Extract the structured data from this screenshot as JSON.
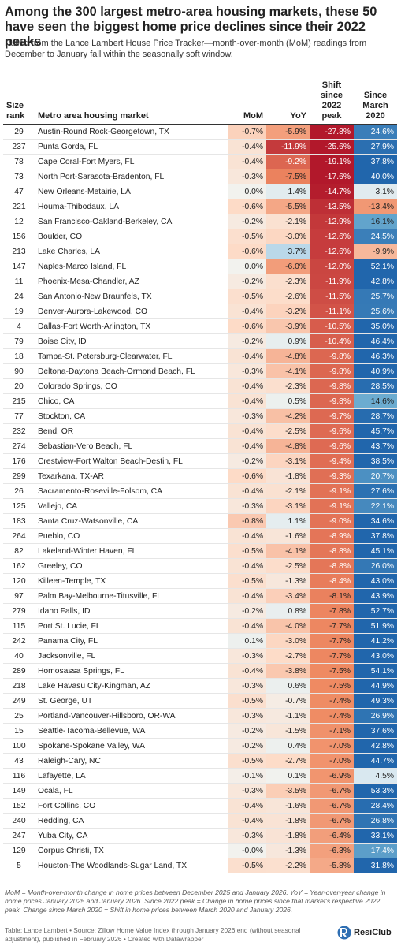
{
  "header": {
    "title": "Among the 300 largest metro-area housing markets, these 50 have seen the biggest home price declines since their 2022 peaks",
    "subtitle": "Pulled from the Lance Lambert House Price Tracker—month-over-month (MoM) readings from December to January fall within the seasonally soft window."
  },
  "table": {
    "columns": [
      "Size rank",
      "Metro area housing market",
      "MoM",
      "YoY",
      "Shift since 2022 peak",
      "Since March 2020"
    ],
    "rows": [
      [
        "29",
        "Austin-Round Rock-Georgetown, TX",
        "-0.7%",
        "-5.9%",
        "-27.8%",
        "24.6%"
      ],
      [
        "237",
        "Punta Gorda, FL",
        "-0.4%",
        "-11.9%",
        "-25.6%",
        "27.9%"
      ],
      [
        "78",
        "Cape Coral-Fort Myers, FL",
        "-0.4%",
        "-9.2%",
        "-19.1%",
        "37.8%"
      ],
      [
        "73",
        "North Port-Sarasota-Bradenton, FL",
        "-0.3%",
        "-7.5%",
        "-17.6%",
        "40.0%"
      ],
      [
        "47",
        "New Orleans-Metairie, LA",
        "0.0%",
        "1.4%",
        "-14.7%",
        "3.1%"
      ],
      [
        "221",
        "Houma-Thibodaux, LA",
        "-0.6%",
        "-5.5%",
        "-13.5%",
        "-13.4%"
      ],
      [
        "12",
        "San Francisco-Oakland-Berkeley, CA",
        "-0.2%",
        "-2.1%",
        "-12.9%",
        "16.1%"
      ],
      [
        "156",
        "Boulder, CO",
        "-0.5%",
        "-3.0%",
        "-12.6%",
        "24.5%"
      ],
      [
        "213",
        "Lake Charles, LA",
        "-0.6%",
        "3.7%",
        "-12.6%",
        "-9.9%"
      ],
      [
        "147",
        "Naples-Marco Island, FL",
        "0.0%",
        "-6.0%",
        "-12.0%",
        "52.1%"
      ],
      [
        "11",
        "Phoenix-Mesa-Chandler, AZ",
        "-0.2%",
        "-2.3%",
        "-11.9%",
        "42.8%"
      ],
      [
        "24",
        "San Antonio-New Braunfels, TX",
        "-0.5%",
        "-2.6%",
        "-11.5%",
        "25.7%"
      ],
      [
        "19",
        "Denver-Aurora-Lakewood, CO",
        "-0.4%",
        "-3.2%",
        "-11.1%",
        "25.6%"
      ],
      [
        "4",
        "Dallas-Fort Worth-Arlington, TX",
        "-0.6%",
        "-3.9%",
        "-10.5%",
        "35.0%"
      ],
      [
        "79",
        "Boise City, ID",
        "-0.2%",
        "0.9%",
        "-10.4%",
        "46.4%"
      ],
      [
        "18",
        "Tampa-St. Petersburg-Clearwater, FL",
        "-0.4%",
        "-4.8%",
        "-9.8%",
        "46.3%"
      ],
      [
        "90",
        "Deltona-Daytona Beach-Ormond Beach, FL",
        "-0.3%",
        "-4.1%",
        "-9.8%",
        "40.9%"
      ],
      [
        "20",
        "Colorado Springs, CO",
        "-0.4%",
        "-2.3%",
        "-9.8%",
        "28.5%"
      ],
      [
        "215",
        "Chico, CA",
        "-0.4%",
        "0.5%",
        "-9.8%",
        "14.6%"
      ],
      [
        "77",
        "Stockton, CA",
        "-0.3%",
        "-4.2%",
        "-9.7%",
        "28.7%"
      ],
      [
        "232",
        "Bend, OR",
        "-0.4%",
        "-2.5%",
        "-9.6%",
        "45.7%"
      ],
      [
        "274",
        "Sebastian-Vero Beach, FL",
        "-0.4%",
        "-4.8%",
        "-9.6%",
        "43.7%"
      ],
      [
        "176",
        "Crestview-Fort Walton Beach-Destin, FL",
        "-0.2%",
        "-3.1%",
        "-9.4%",
        "38.5%"
      ],
      [
        "299",
        "Texarkana, TX-AR",
        "-0.6%",
        "-1.8%",
        "-9.3%",
        "20.7%"
      ],
      [
        "26",
        "Sacramento-Roseville-Folsom, CA",
        "-0.4%",
        "-2.1%",
        "-9.1%",
        "27.6%"
      ],
      [
        "125",
        "Vallejo, CA",
        "-0.3%",
        "-3.1%",
        "-9.1%",
        "22.1%"
      ],
      [
        "183",
        "Santa Cruz-Watsonville, CA",
        "-0.8%",
        "1.1%",
        "-9.0%",
        "34.6%"
      ],
      [
        "264",
        "Pueblo, CO",
        "-0.4%",
        "-1.6%",
        "-8.9%",
        "37.8%"
      ],
      [
        "82",
        "Lakeland-Winter Haven, FL",
        "-0.5%",
        "-4.1%",
        "-8.8%",
        "45.1%"
      ],
      [
        "162",
        "Greeley, CO",
        "-0.4%",
        "-2.5%",
        "-8.8%",
        "26.0%"
      ],
      [
        "120",
        "Killeen-Temple, TX",
        "-0.5%",
        "-1.3%",
        "-8.4%",
        "43.0%"
      ],
      [
        "97",
        "Palm Bay-Melbourne-Titusville, FL",
        "-0.4%",
        "-3.4%",
        "-8.1%",
        "43.9%"
      ],
      [
        "279",
        "Idaho Falls, ID",
        "-0.2%",
        "0.8%",
        "-7.8%",
        "52.7%"
      ],
      [
        "115",
        "Port St. Lucie, FL",
        "-0.4%",
        "-4.0%",
        "-7.7%",
        "51.9%"
      ],
      [
        "242",
        "Panama City, FL",
        "0.1%",
        "-3.0%",
        "-7.7%",
        "41.2%"
      ],
      [
        "40",
        "Jacksonville, FL",
        "-0.3%",
        "-2.7%",
        "-7.7%",
        "43.0%"
      ],
      [
        "289",
        "Homosassa Springs, FL",
        "-0.4%",
        "-3.8%",
        "-7.5%",
        "54.1%"
      ],
      [
        "218",
        "Lake Havasu City-Kingman, AZ",
        "-0.3%",
        "0.6%",
        "-7.5%",
        "44.9%"
      ],
      [
        "249",
        "St. George, UT",
        "-0.5%",
        "-0.7%",
        "-7.4%",
        "49.3%"
      ],
      [
        "25",
        "Portland-Vancouver-Hillsboro, OR-WA",
        "-0.3%",
        "-1.1%",
        "-7.4%",
        "26.9%"
      ],
      [
        "15",
        "Seattle-Tacoma-Bellevue, WA",
        "-0.2%",
        "-1.5%",
        "-7.1%",
        "37.6%"
      ],
      [
        "100",
        "Spokane-Spokane Valley, WA",
        "-0.2%",
        "0.4%",
        "-7.0%",
        "42.8%"
      ],
      [
        "43",
        "Raleigh-Cary, NC",
        "-0.5%",
        "-2.7%",
        "-7.0%",
        "44.7%"
      ],
      [
        "116",
        "Lafayette, LA",
        "-0.1%",
        "0.1%",
        "-6.9%",
        "4.5%"
      ],
      [
        "149",
        "Ocala, FL",
        "-0.3%",
        "-3.5%",
        "-6.7%",
        "53.3%"
      ],
      [
        "152",
        "Fort Collins, CO",
        "-0.4%",
        "-1.6%",
        "-6.7%",
        "28.4%"
      ],
      [
        "240",
        "Redding, CA",
        "-0.4%",
        "-1.8%",
        "-6.7%",
        "26.8%"
      ],
      [
        "247",
        "Yuba City, CA",
        "-0.3%",
        "-1.8%",
        "-6.4%",
        "33.1%"
      ],
      [
        "129",
        "Corpus Christi, TX",
        "-0.0%",
        "-1.3%",
        "-6.3%",
        "17.4%"
      ],
      [
        "5",
        "Houston-The Woodlands-Sugar Land, TX",
        "-0.5%",
        "-2.2%",
        "-5.8%",
        "31.8%"
      ]
    ]
  },
  "footer": {
    "note": "MoM = Month-over-month change in home prices between December 2025 and January 2026. YoY = Year-over-year change in home prices January 2025 and January 2026. Since 2022 peak = Change in home prices since that market's respective 2022 peak. Change since March 2020 = Shift in home prices between March 2020 and January 2026.",
    "credit": "Table: Lance Lambert • Source: Zillow Home Value Index through January 2026 end (without seasonal adjustment), published in February 2026 • Created with Datawrapper",
    "logo": "ResiClub"
  }
}
